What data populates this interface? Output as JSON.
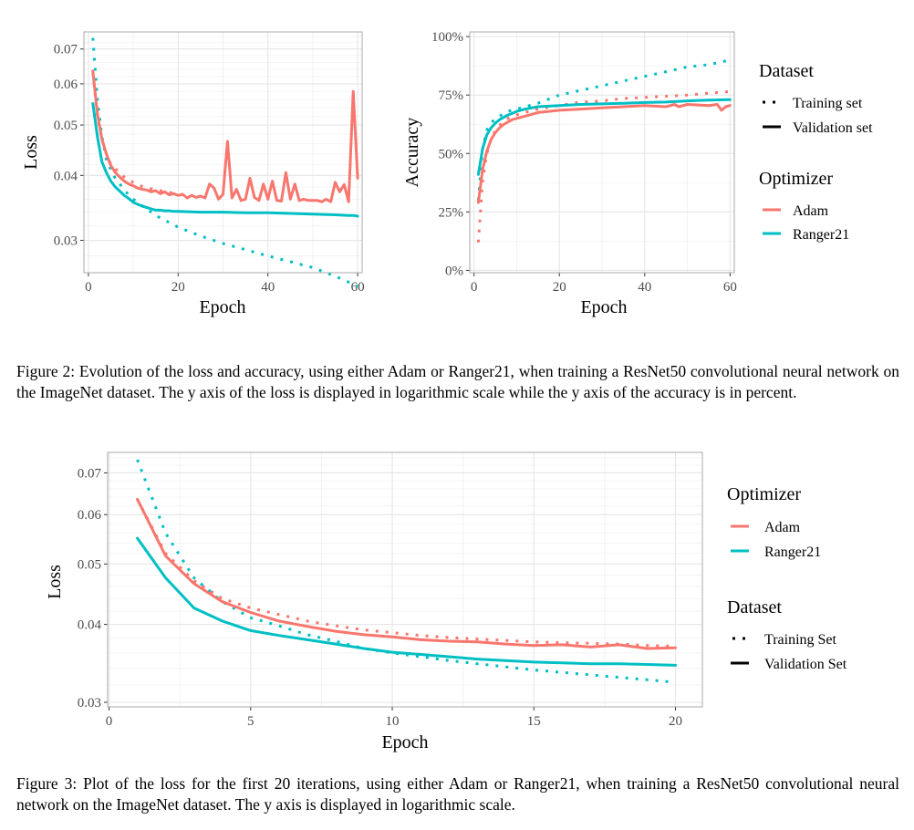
{
  "colors": {
    "adam": "#f8766d",
    "ranger21": "#00bfc4",
    "grid": "#e6e6e6",
    "panel_border": "#aaaaaa"
  },
  "chart_data": [
    {
      "id": "fig2-loss",
      "type": "line",
      "xlabel": "Epoch",
      "ylabel": "Loss",
      "xlim": [
        -1,
        61
      ],
      "ylim": [
        0.026,
        0.0755
      ],
      "yscale": "log",
      "xticks": [
        {
          "value": 0,
          "label": "0"
        },
        {
          "value": 20,
          "label": "20"
        },
        {
          "value": 40,
          "label": "40"
        },
        {
          "value": 60,
          "label": "60"
        }
      ],
      "yticks": [
        {
          "value": 0.03,
          "label": "0.03"
        },
        {
          "value": 0.04,
          "label": "0.04"
        },
        {
          "value": 0.05,
          "label": "0.05"
        },
        {
          "value": 0.06,
          "label": "0.06"
        },
        {
          "value": 0.07,
          "label": "0.07"
        }
      ],
      "series": [
        {
          "name": "Adam Training",
          "optimizer": "Adam",
          "dataset": "Training",
          "x": [
            1,
            2,
            3,
            4,
            5,
            6,
            7,
            8,
            9,
            10,
            11,
            12,
            13,
            14,
            15,
            16,
            17,
            18,
            19,
            20
          ],
          "y": [
            0.063,
            0.052,
            0.047,
            0.044,
            0.042,
            0.0412,
            0.0405,
            0.0397,
            0.0392,
            0.0388,
            0.0384,
            0.0381,
            0.0379,
            0.0377,
            0.0375,
            0.0374,
            0.0372,
            0.0371,
            0.037,
            0.0369
          ]
        },
        {
          "name": "Adam Validation",
          "optimizer": "Adam",
          "dataset": "Validation",
          "x": [
            1,
            2,
            3,
            4,
            5,
            6,
            7,
            8,
            9,
            10,
            11,
            12,
            13,
            14,
            15,
            16,
            17,
            18,
            19,
            20,
            21,
            22,
            23,
            24,
            25,
            26,
            27,
            28,
            29,
            30,
            31,
            32,
            33,
            34,
            35,
            36,
            37,
            38,
            39,
            40,
            41,
            42,
            43,
            44,
            45,
            46,
            47,
            48,
            49,
            50,
            51,
            52,
            53,
            54,
            55,
            56,
            57,
            58,
            59,
            60
          ],
          "y": [
            0.0635,
            0.0525,
            0.047,
            0.044,
            0.0418,
            0.0405,
            0.0397,
            0.039,
            0.0385,
            0.0382,
            0.0378,
            0.0376,
            0.0375,
            0.0372,
            0.0374,
            0.0369,
            0.0372,
            0.0367,
            0.0369,
            0.0366,
            0.0368,
            0.0362,
            0.0366,
            0.0363,
            0.0365,
            0.0362,
            0.0385,
            0.0378,
            0.036,
            0.0368,
            0.0465,
            0.0362,
            0.0376,
            0.0358,
            0.036,
            0.0395,
            0.0363,
            0.0358,
            0.0385,
            0.036,
            0.039,
            0.0358,
            0.0357,
            0.0405,
            0.036,
            0.0385,
            0.0358,
            0.036,
            0.0358,
            0.0358,
            0.0358,
            0.0356,
            0.036,
            0.0356,
            0.0388,
            0.0372,
            0.0384,
            0.0356,
            0.058,
            0.0395
          ]
        },
        {
          "name": "Ranger21 Training",
          "optimizer": "Ranger21",
          "dataset": "Training",
          "x": [
            1,
            2,
            3,
            4,
            5,
            6,
            7,
            8,
            9,
            10,
            15,
            20,
            25,
            30,
            35,
            40,
            45,
            50,
            55,
            60
          ],
          "y": [
            0.0735,
            0.056,
            0.0475,
            0.043,
            0.041,
            0.0395,
            0.0385,
            0.0375,
            0.0367,
            0.036,
            0.0335,
            0.0318,
            0.0306,
            0.0296,
            0.0288,
            0.028,
            0.0273,
            0.0266,
            0.0256,
            0.0245
          ]
        },
        {
          "name": "Ranger21 Validation",
          "optimizer": "Ranger21",
          "dataset": "Validation",
          "x": [
            1,
            2,
            3,
            4,
            5,
            6,
            7,
            8,
            9,
            10,
            11,
            12,
            13,
            14,
            15,
            16,
            17,
            18,
            19,
            20,
            25,
            30,
            35,
            40,
            45,
            50,
            55,
            58,
            59,
            60
          ],
          "y": [
            0.055,
            0.0475,
            0.0425,
            0.0405,
            0.039,
            0.038,
            0.0373,
            0.0366,
            0.0361,
            0.0355,
            0.0352,
            0.0349,
            0.0347,
            0.0345,
            0.0343,
            0.0343,
            0.0342,
            0.0342,
            0.0341,
            0.0341,
            0.034,
            0.034,
            0.0339,
            0.0339,
            0.0338,
            0.0337,
            0.0336,
            0.0335,
            0.0335,
            0.0334
          ]
        }
      ]
    },
    {
      "id": "fig2-accuracy",
      "type": "line",
      "xlabel": "Epoch",
      "ylabel": "Accuracy",
      "xlim": [
        -1,
        61
      ],
      "ylim": [
        -0.01,
        1.02
      ],
      "yscale": "linear",
      "xticks": [
        {
          "value": 0,
          "label": "0"
        },
        {
          "value": 20,
          "label": "20"
        },
        {
          "value": 40,
          "label": "40"
        },
        {
          "value": 60,
          "label": "60"
        }
      ],
      "yticks": [
        {
          "value": 0,
          "label": "0%"
        },
        {
          "value": 0.25,
          "label": "25%"
        },
        {
          "value": 0.5,
          "label": "50%"
        },
        {
          "value": 0.75,
          "label": "75%"
        },
        {
          "value": 1.0,
          "label": "100%"
        }
      ],
      "series": [
        {
          "name": "Adam Training",
          "optimizer": "Adam",
          "dataset": "Training",
          "x": [
            1,
            2,
            3,
            4,
            5,
            6,
            7,
            8,
            10,
            12,
            15,
            20,
            25,
            30,
            35,
            40,
            45,
            50,
            55,
            60
          ],
          "y": [
            0.12,
            0.38,
            0.5,
            0.56,
            0.6,
            0.62,
            0.64,
            0.65,
            0.665,
            0.675,
            0.69,
            0.705,
            0.72,
            0.725,
            0.735,
            0.74,
            0.745,
            0.75,
            0.758,
            0.765
          ]
        },
        {
          "name": "Adam Validation",
          "optimizer": "Adam",
          "dataset": "Validation",
          "x": [
            1,
            2,
            3,
            4,
            5,
            6,
            7,
            8,
            9,
            10,
            12,
            15,
            20,
            25,
            30,
            35,
            40,
            45,
            47,
            48,
            50,
            55,
            57,
            58,
            59,
            60
          ],
          "y": [
            0.29,
            0.43,
            0.51,
            0.56,
            0.59,
            0.61,
            0.625,
            0.635,
            0.645,
            0.65,
            0.66,
            0.675,
            0.685,
            0.69,
            0.695,
            0.7,
            0.705,
            0.7,
            0.71,
            0.7,
            0.71,
            0.705,
            0.71,
            0.685,
            0.7,
            0.705
          ]
        },
        {
          "name": "Ranger21 Training",
          "optimizer": "Ranger21",
          "dataset": "Training",
          "x": [
            1,
            2,
            3,
            4,
            5,
            6,
            7,
            8,
            10,
            12,
            15,
            20,
            25,
            30,
            35,
            40,
            45,
            50,
            55,
            60
          ],
          "y": [
            0.3,
            0.52,
            0.6,
            0.63,
            0.65,
            0.66,
            0.67,
            0.68,
            0.69,
            0.7,
            0.715,
            0.75,
            0.77,
            0.79,
            0.81,
            0.83,
            0.85,
            0.87,
            0.88,
            0.9
          ]
        },
        {
          "name": "Ranger21 Validation",
          "optimizer": "Ranger21",
          "dataset": "Validation",
          "x": [
            1,
            2,
            3,
            4,
            5,
            6,
            7,
            8,
            9,
            10,
            12,
            15,
            20,
            25,
            30,
            35,
            40,
            45,
            50,
            55,
            60
          ],
          "y": [
            0.41,
            0.52,
            0.58,
            0.61,
            0.63,
            0.645,
            0.655,
            0.665,
            0.672,
            0.68,
            0.69,
            0.7,
            0.705,
            0.71,
            0.712,
            0.715,
            0.718,
            0.72,
            0.725,
            0.728,
            0.73
          ]
        }
      ]
    },
    {
      "id": "fig3-loss",
      "type": "line",
      "xlabel": "Epoch",
      "ylabel": "Loss",
      "xlim": [
        -0.05,
        20.95
      ],
      "ylim": [
        0.0295,
        0.0755
      ],
      "yscale": "log",
      "xticks": [
        {
          "value": 0,
          "label": "0"
        },
        {
          "value": 5,
          "label": "5"
        },
        {
          "value": 10,
          "label": "10"
        },
        {
          "value": 15,
          "label": "15"
        },
        {
          "value": 20,
          "label": "20"
        }
      ],
      "yticks": [
        {
          "value": 0.03,
          "label": "0.03"
        },
        {
          "value": 0.04,
          "label": "0.04"
        },
        {
          "value": 0.05,
          "label": "0.05"
        },
        {
          "value": 0.06,
          "label": "0.06"
        },
        {
          "value": 0.07,
          "label": "0.07"
        }
      ],
      "series": [
        {
          "name": "Adam Training",
          "optimizer": "Adam",
          "dataset": "Training",
          "x": [
            1,
            2,
            3,
            4,
            5,
            6,
            7,
            8,
            9,
            10,
            11,
            12,
            13,
            14,
            15,
            16,
            17,
            18,
            19,
            20
          ],
          "y": [
            0.0635,
            0.052,
            0.047,
            0.044,
            0.0425,
            0.0415,
            0.0405,
            0.0398,
            0.0392,
            0.0388,
            0.0384,
            0.0381,
            0.0379,
            0.0377,
            0.0375,
            0.0374,
            0.0373,
            0.0372,
            0.037,
            0.0369
          ]
        },
        {
          "name": "Adam Validation",
          "optimizer": "Adam",
          "dataset": "Validation",
          "x": [
            1,
            2,
            3,
            4,
            5,
            6,
            7,
            8,
            9,
            10,
            11,
            12,
            13,
            14,
            15,
            16,
            17,
            18,
            19,
            20
          ],
          "y": [
            0.0635,
            0.0515,
            0.0465,
            0.0435,
            0.0418,
            0.0405,
            0.0397,
            0.039,
            0.0385,
            0.0382,
            0.0378,
            0.0376,
            0.0375,
            0.0372,
            0.037,
            0.0371,
            0.0368,
            0.0371,
            0.0366,
            0.0367
          ]
        },
        {
          "name": "Ranger21 Training",
          "optimizer": "Ranger21",
          "dataset": "Training",
          "x": [
            1,
            2,
            3,
            4,
            5,
            6,
            7,
            8,
            9,
            10,
            11,
            12,
            13,
            14,
            15,
            16,
            17,
            18,
            19,
            20
          ],
          "y": [
            0.0735,
            0.056,
            0.0475,
            0.0435,
            0.041,
            0.0398,
            0.0385,
            0.0376,
            0.0366,
            0.036,
            0.0355,
            0.035,
            0.0346,
            0.0342,
            0.0338,
            0.0335,
            0.0332,
            0.0329,
            0.0326,
            0.0323
          ]
        },
        {
          "name": "Ranger21 Validation",
          "optimizer": "Ranger21",
          "dataset": "Validation",
          "x": [
            1,
            2,
            3,
            4,
            5,
            6,
            7,
            8,
            9,
            10,
            11,
            12,
            13,
            14,
            15,
            16,
            17,
            18,
            19,
            20
          ],
          "y": [
            0.055,
            0.0475,
            0.0425,
            0.0405,
            0.0391,
            0.0384,
            0.0378,
            0.0372,
            0.0366,
            0.0361,
            0.0358,
            0.0355,
            0.0352,
            0.035,
            0.0348,
            0.0347,
            0.0346,
            0.0346,
            0.0345,
            0.0344
          ]
        }
      ]
    }
  ],
  "fig2": {
    "legend": {
      "dataset_title": "Dataset",
      "dataset_items": [
        "Training set",
        "Validation set"
      ],
      "optimizer_title": "Optimizer",
      "optimizer_items": [
        "Adam",
        "Ranger21"
      ]
    },
    "caption": "Figure 2: Evolution of the loss and accuracy, using either Adam or Ranger21, when training a ResNet50 convolutional neural network on the ImageNet dataset. The y axis of the loss is displayed in logarithmic scale while the y axis of the accuracy is in percent."
  },
  "fig3": {
    "legend": {
      "optimizer_title": "Optimizer",
      "optimizer_items": [
        "Adam",
        "Ranger21"
      ],
      "dataset_title": "Dataset",
      "dataset_items": [
        "Training Set",
        "Validation Set"
      ]
    },
    "caption": "Figure 3: Plot of the loss for the first 20 iterations, using either Adam or Ranger21, when training a ResNet50 convolutional neural network on the ImageNet dataset. The y axis is displayed in logarithmic scale."
  }
}
